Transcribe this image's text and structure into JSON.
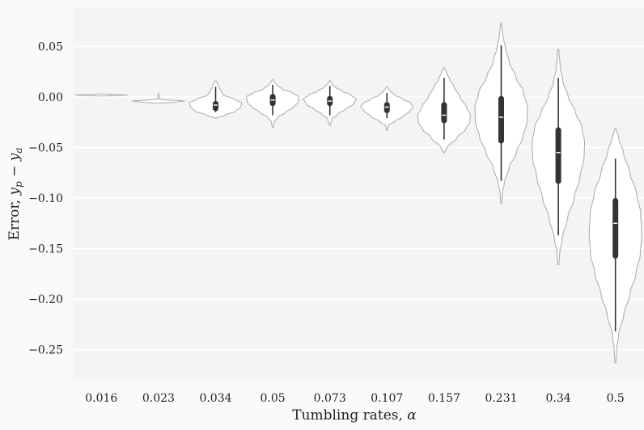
{
  "chart_data": {
    "type": "violin",
    "xlabel_text": "Tumbling rates, ",
    "xlabel_symbol": "α",
    "ylabel_text": "Error, ",
    "ylabel_symbol": "y",
    "ylabel_sub_p": "p",
    "ylabel_minus": " − ",
    "ylabel_sub_a": "a",
    "ylim": [
      -0.28,
      0.088
    ],
    "yticks": [
      0.05,
      0.0,
      -0.05,
      -0.1,
      -0.15,
      -0.2,
      -0.25
    ],
    "ytick_labels": [
      "0.05",
      "0.00",
      "−0.05",
      "−0.10",
      "−0.15",
      "−0.20",
      "−0.25"
    ],
    "grid": true,
    "colors": {
      "background": "#f4f4f4",
      "grid": "#ffffff",
      "violin_fill": "#ffffff",
      "violin_edge": "#b0b0b0",
      "box": "#333333",
      "median": "#ffffff"
    },
    "categories": [
      "0.016",
      "0.023",
      "0.034",
      "0.05",
      "0.073",
      "0.107",
      "0.157",
      "0.231",
      "0.34",
      "0.5"
    ],
    "violins": [
      {
        "label": "0.016",
        "min": 0.001,
        "max": 0.003,
        "q1": 0.002,
        "median": 0.002,
        "q3": 0.002,
        "wlo": 0.002,
        "whi": 0.002,
        "halfwidth": 0.5,
        "profile": [
          [
            0.001,
            0.12
          ],
          [
            0.0015,
            0.5
          ],
          [
            0.002,
            1.0
          ],
          [
            0.0025,
            0.5
          ],
          [
            0.003,
            0.12
          ]
        ]
      },
      {
        "label": "0.023",
        "min": -0.006,
        "max": 0.004,
        "q1": -0.004,
        "median": -0.004,
        "q3": -0.004,
        "wlo": -0.004,
        "whi": -0.004,
        "halfwidth": 0.5,
        "profile": [
          [
            -0.006,
            0.15
          ],
          [
            -0.005,
            0.7
          ],
          [
            -0.004,
            1.0
          ],
          [
            -0.003,
            0.35
          ],
          [
            -0.002,
            0.03
          ],
          [
            0.0,
            0.02
          ],
          [
            0.002,
            0.02
          ],
          [
            0.004,
            0.0
          ]
        ]
      },
      {
        "label": "0.034",
        "min": -0.021,
        "max": 0.016,
        "q1": -0.014,
        "median": -0.008,
        "q3": -0.004,
        "wlo": -0.015,
        "whi": 0.01,
        "halfwidth": 0.5,
        "profile": [
          [
            -0.021,
            0.02
          ],
          [
            -0.018,
            0.35
          ],
          [
            -0.014,
            0.78
          ],
          [
            -0.01,
            0.95
          ],
          [
            -0.006,
            1.0
          ],
          [
            -0.002,
            0.7
          ],
          [
            0.002,
            0.3
          ],
          [
            0.006,
            0.2
          ],
          [
            0.01,
            0.12
          ],
          [
            0.013,
            0.08
          ],
          [
            0.016,
            0.02
          ]
        ]
      },
      {
        "label": "0.05",
        "min": -0.03,
        "max": 0.017,
        "q1": -0.009,
        "median": -0.003,
        "q3": 0.003,
        "wlo": -0.018,
        "whi": 0.012,
        "halfwidth": 0.5,
        "profile": [
          [
            -0.03,
            0.02
          ],
          [
            -0.025,
            0.05
          ],
          [
            -0.02,
            0.2
          ],
          [
            -0.015,
            0.5
          ],
          [
            -0.01,
            0.8
          ],
          [
            -0.005,
            0.97
          ],
          [
            0.0,
            1.0
          ],
          [
            0.004,
            0.75
          ],
          [
            0.008,
            0.35
          ],
          [
            0.012,
            0.15
          ],
          [
            0.015,
            0.06
          ],
          [
            0.017,
            0.02
          ]
        ]
      },
      {
        "label": "0.073",
        "min": -0.028,
        "max": 0.016,
        "q1": -0.009,
        "median": -0.004,
        "q3": 0.001,
        "wlo": -0.018,
        "whi": 0.011,
        "halfwidth": 0.5,
        "profile": [
          [
            -0.028,
            0.02
          ],
          [
            -0.022,
            0.08
          ],
          [
            -0.017,
            0.3
          ],
          [
            -0.012,
            0.6
          ],
          [
            -0.007,
            0.9
          ],
          [
            -0.002,
            1.0
          ],
          [
            0.002,
            0.8
          ],
          [
            0.006,
            0.45
          ],
          [
            0.01,
            0.2
          ],
          [
            0.013,
            0.08
          ],
          [
            0.016,
            0.02
          ]
        ]
      },
      {
        "label": "0.107",
        "min": -0.033,
        "max": 0.01,
        "q1": -0.016,
        "median": -0.01,
        "q3": -0.005,
        "wlo": -0.021,
        "whi": 0.004,
        "halfwidth": 0.5,
        "profile": [
          [
            -0.033,
            0.02
          ],
          [
            -0.028,
            0.05
          ],
          [
            -0.024,
            0.3
          ],
          [
            -0.019,
            0.62
          ],
          [
            -0.014,
            0.87
          ],
          [
            -0.01,
            1.0
          ],
          [
            -0.006,
            0.9
          ],
          [
            -0.002,
            0.6
          ],
          [
            0.002,
            0.3
          ],
          [
            0.006,
            0.12
          ],
          [
            0.01,
            0.02
          ]
        ]
      },
      {
        "label": "0.157",
        "min": -0.055,
        "max": 0.029,
        "q1": -0.026,
        "median": -0.018,
        "q3": -0.005,
        "wlo": -0.042,
        "whi": 0.019,
        "halfwidth": 0.5,
        "profile": [
          [
            -0.055,
            0.02
          ],
          [
            -0.05,
            0.12
          ],
          [
            -0.04,
            0.5
          ],
          [
            -0.032,
            0.82
          ],
          [
            -0.025,
            0.98
          ],
          [
            -0.018,
            1.0
          ],
          [
            -0.01,
            0.85
          ],
          [
            0.0,
            0.6
          ],
          [
            0.01,
            0.38
          ],
          [
            0.018,
            0.2
          ],
          [
            0.024,
            0.1
          ],
          [
            0.029,
            0.02
          ]
        ]
      },
      {
        "label": "0.231",
        "min": -0.105,
        "max": 0.073,
        "q1": -0.046,
        "median": -0.02,
        "q3": 0.001,
        "wlo": -0.083,
        "whi": 0.051,
        "halfwidth": 0.5,
        "profile": [
          [
            -0.105,
            0.02
          ],
          [
            -0.095,
            0.04
          ],
          [
            -0.085,
            0.12
          ],
          [
            -0.07,
            0.3
          ],
          [
            -0.055,
            0.58
          ],
          [
            -0.04,
            0.82
          ],
          [
            -0.025,
            0.98
          ],
          [
            -0.01,
            1.0
          ],
          [
            0.005,
            0.85
          ],
          [
            0.02,
            0.55
          ],
          [
            0.035,
            0.3
          ],
          [
            0.05,
            0.15
          ],
          [
            0.06,
            0.07
          ],
          [
            0.073,
            0.02
          ]
        ]
      },
      {
        "label": "0.34",
        "min": -0.166,
        "max": 0.047,
        "q1": -0.086,
        "median": -0.055,
        "q3": -0.03,
        "wlo": -0.137,
        "whi": 0.019,
        "halfwidth": 0.5,
        "profile": [
          [
            -0.166,
            0.02
          ],
          [
            -0.155,
            0.05
          ],
          [
            -0.14,
            0.15
          ],
          [
            -0.12,
            0.35
          ],
          [
            -0.1,
            0.6
          ],
          [
            -0.08,
            0.82
          ],
          [
            -0.06,
            0.98
          ],
          [
            -0.045,
            1.0
          ],
          [
            -0.03,
            0.9
          ],
          [
            -0.015,
            0.65
          ],
          [
            0.0,
            0.38
          ],
          [
            0.015,
            0.18
          ],
          [
            0.03,
            0.07
          ],
          [
            0.047,
            0.02
          ]
        ]
      },
      {
        "label": "0.5",
        "min": -0.263,
        "max": -0.031,
        "q1": -0.16,
        "median": -0.125,
        "q3": -0.1,
        "wlo": -0.232,
        "whi": -0.061,
        "halfwidth": 0.5,
        "profile": [
          [
            -0.263,
            0.02
          ],
          [
            -0.25,
            0.05
          ],
          [
            -0.235,
            0.12
          ],
          [
            -0.215,
            0.32
          ],
          [
            -0.195,
            0.55
          ],
          [
            -0.175,
            0.78
          ],
          [
            -0.155,
            0.95
          ],
          [
            -0.135,
            1.0
          ],
          [
            -0.115,
            0.96
          ],
          [
            -0.095,
            0.8
          ],
          [
            -0.075,
            0.55
          ],
          [
            -0.055,
            0.3
          ],
          [
            -0.04,
            0.12
          ],
          [
            -0.031,
            0.02
          ]
        ]
      }
    ]
  }
}
